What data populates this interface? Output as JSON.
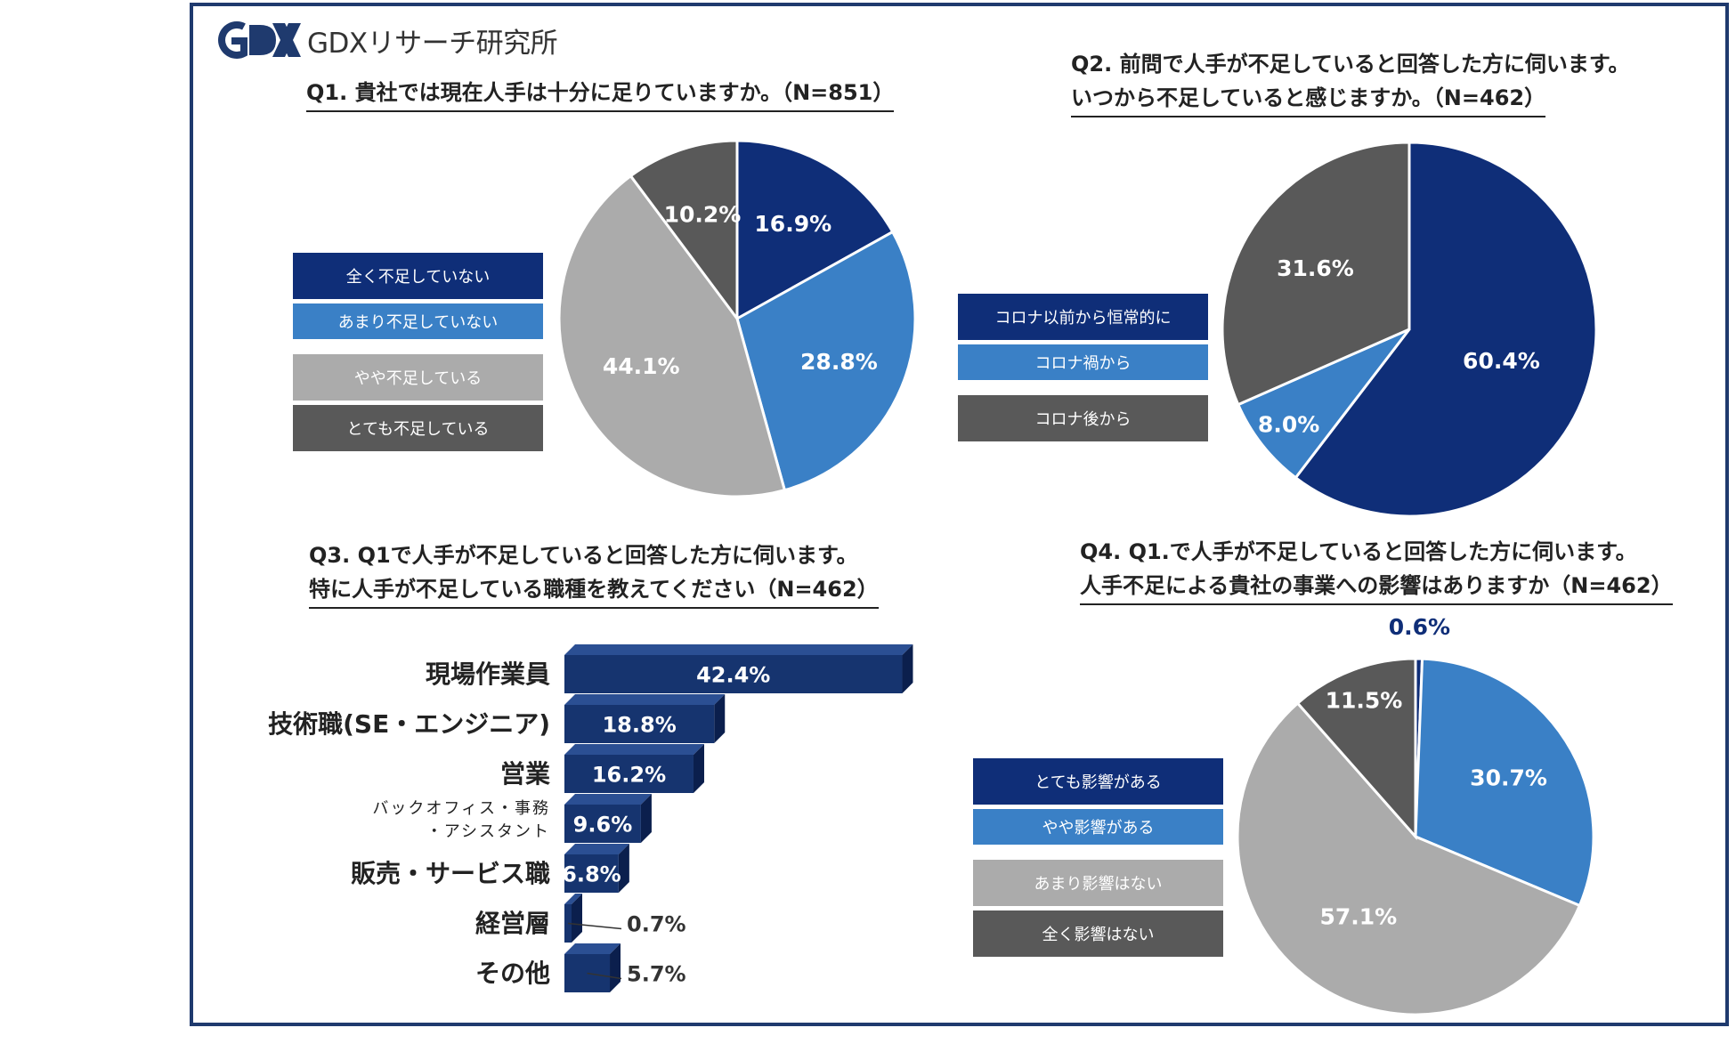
{
  "logo": {
    "mark": "GDX",
    "text": "GDXリサーチ研究所"
  },
  "colors": {
    "navy": "#0f2e78",
    "blue": "#3a80c6",
    "light_gray": "#ababab",
    "dark_gray": "#595959",
    "frame": "#1f3a6e",
    "bar": "#16346f"
  },
  "chart_data": [
    {
      "id": "q1",
      "type": "pie",
      "title": "Q1. 貴社では現在人手は十分に足りていますか。（N=851）",
      "categories": [
        "全く不足していない",
        "あまり不足していない",
        "やや不足している",
        "とても不足している"
      ],
      "values": [
        16.9,
        28.8,
        44.1,
        10.2
      ],
      "labels": [
        "16.9%",
        "28.8%",
        "44.1%",
        "10.2%"
      ],
      "colors": [
        "#0f2e78",
        "#3a80c6",
        "#ababab",
        "#595959"
      ]
    },
    {
      "id": "q2",
      "type": "pie",
      "title_line1": "Q2. 前問で人手が不足していると回答した方に伺います。",
      "title_line2": "いつから不足していると感じますか。（N=462）",
      "categories": [
        "コロナ以前から恒常的に",
        "コロナ禍から",
        "コロナ後から"
      ],
      "values": [
        60.4,
        8.0,
        31.6
      ],
      "labels": [
        "60.4%",
        "8.0%",
        "31.6%"
      ],
      "colors": [
        "#0f2e78",
        "#3a80c6",
        "#595959"
      ]
    },
    {
      "id": "q3",
      "type": "bar",
      "orientation": "horizontal",
      "title_line1": "Q3. Q1で人手が不足していると回答した方に伺います。",
      "title_line2": "特に人手が不足している職種を教えてください（N=462）",
      "categories": [
        "現場作業員",
        "技術職(SE・エンジニア)",
        "営業",
        "バックオフィス・事務・アシスタント",
        "販売・サービス職",
        "経営層",
        "その他"
      ],
      "category_lines": [
        [
          "現場作業員"
        ],
        [
          "技術職(SE・エンジニア)"
        ],
        [
          "営業"
        ],
        [
          "バックオフィス・事務",
          "・アシスタント"
        ],
        [
          "販売・サービス職"
        ],
        [
          "経営層"
        ],
        [
          "その他"
        ]
      ],
      "values": [
        42.4,
        18.8,
        16.2,
        9.6,
        6.8,
        0.7,
        5.7
      ],
      "labels": [
        "42.4%",
        "18.8%",
        "16.2%",
        "9.6%",
        "6.8%",
        "0.7%",
        "5.7%"
      ]
    },
    {
      "id": "q4",
      "type": "pie",
      "title_line1": "Q4. Q1.で人手が不足していると回答した方に伺います。",
      "title_line2": "人手不足による貴社の事業への影響はありますか（N=462）",
      "categories": [
        "とても影響がある",
        "やや影響がある",
        "あまり影響はない",
        "全く影響はない"
      ],
      "values": [
        0.6,
        30.7,
        57.1,
        11.5
      ],
      "labels": [
        "0.6%",
        "30.7%",
        "57.1%",
        "11.5%"
      ],
      "colors": [
        "#0f2e78",
        "#3a80c6",
        "#ababab",
        "#595959"
      ]
    }
  ]
}
